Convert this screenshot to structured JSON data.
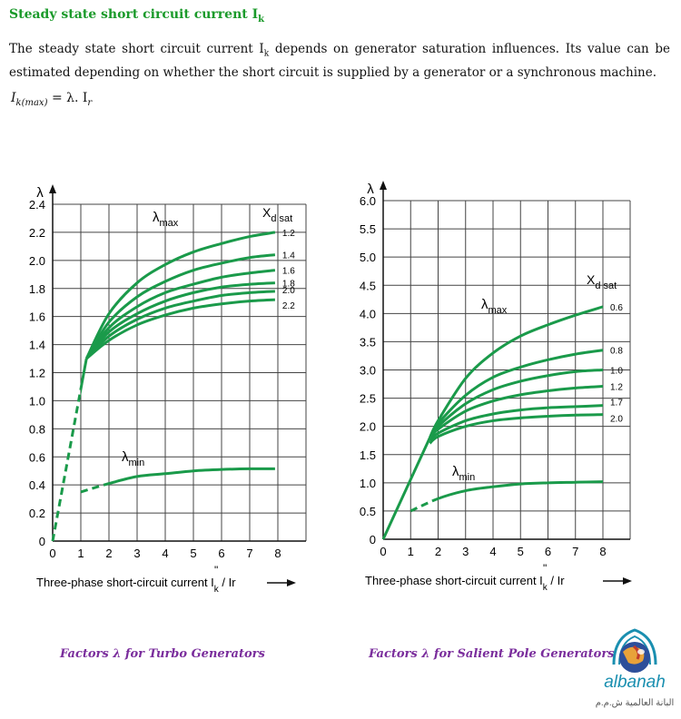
{
  "heading": {
    "text": "Steady state short circuit current I",
    "sub": "k"
  },
  "paragraph": {
    "part1": "The steady state short circuit current I",
    "sub": "k",
    "part2": " depends on generator saturation influences. Its value can be estimated depending on whether the short circuit is supplied by a generator or a synchronous machine."
  },
  "formula": {
    "lhs": "I",
    "lhs_sub": "k(max)",
    "rhs": "= λ. I",
    "rhs_sub": "r"
  },
  "captions": {
    "left": "Factors λ for Turbo Generators",
    "right": "Factors λ for Salient Pole Generators"
  },
  "logo": {
    "text": "albanah",
    "arabic": "البانة العالمية ش.م.م"
  },
  "colors": {
    "curve": "#1a9a4a",
    "title": "#1a9a2a",
    "caption": "#7a2d9c"
  },
  "chart_data": [
    {
      "type": "line",
      "title": "Factors λ for Turbo Generators",
      "xlabel": "Three-phase short-circuit current I\"k / Ir",
      "ylabel": "λ",
      "xlim": [
        0,
        8
      ],
      "ylim": [
        0,
        2.4
      ],
      "xticks": [
        "0",
        "1",
        "2",
        "3",
        "4",
        "5",
        "6",
        "7",
        "8"
      ],
      "yticks": [
        "0",
        "0.2",
        "0.4",
        "0.6",
        "0.8",
        "1.0",
        "1.2",
        "1.4",
        "1.6",
        "1.8",
        "2.0",
        "2.2",
        "2.4"
      ],
      "grid": true,
      "legend_title": "Xd sat",
      "annotations": [
        "λmax",
        "λmin"
      ],
      "series": [
        {
          "name": "1.2",
          "x": [
            1.2,
            2,
            3,
            4,
            5,
            6,
            7,
            7.9
          ],
          "values": [
            1.3,
            1.62,
            1.84,
            1.97,
            2.06,
            2.12,
            2.17,
            2.2
          ]
        },
        {
          "name": "1.4",
          "x": [
            1.2,
            2,
            3,
            4,
            5,
            6,
            7,
            7.9
          ],
          "values": [
            1.3,
            1.56,
            1.74,
            1.85,
            1.93,
            1.98,
            2.02,
            2.04
          ]
        },
        {
          "name": "1.6",
          "x": [
            1.2,
            2,
            3,
            4,
            5,
            6,
            7,
            7.9
          ],
          "values": [
            1.3,
            1.52,
            1.67,
            1.77,
            1.83,
            1.88,
            1.91,
            1.93
          ]
        },
        {
          "name": "1.8",
          "x": [
            1.2,
            2,
            3,
            4,
            5,
            6,
            7,
            7.9
          ],
          "values": [
            1.3,
            1.49,
            1.62,
            1.71,
            1.77,
            1.81,
            1.83,
            1.84
          ]
        },
        {
          "name": "2.0",
          "x": [
            1.2,
            2,
            3,
            4,
            5,
            6,
            7,
            7.9
          ],
          "values": [
            1.3,
            1.46,
            1.58,
            1.66,
            1.71,
            1.75,
            1.77,
            1.78
          ]
        },
        {
          "name": "2.2",
          "x": [
            1.2,
            2,
            3,
            4,
            5,
            6,
            7,
            7.9
          ],
          "values": [
            1.3,
            1.43,
            1.54,
            1.61,
            1.66,
            1.69,
            1.71,
            1.72
          ]
        },
        {
          "name": "λmax (linear part)",
          "x": [
            0,
            1.2
          ],
          "values": [
            0,
            1.3
          ],
          "dashed_until": 1.0
        },
        {
          "name": "λmin",
          "x": [
            1,
            2,
            3,
            4,
            5,
            6,
            7,
            7.9
          ],
          "values": [
            0.35,
            0.41,
            0.46,
            0.48,
            0.5,
            0.51,
            0.515,
            0.515
          ],
          "dashed_until": 2.0
        }
      ]
    },
    {
      "type": "line",
      "title": "Factors λ for Salient Pole Generators",
      "xlabel": "Three-phase short-circuit current I\"k / Ir",
      "ylabel": "λ",
      "xlim": [
        0,
        8
      ],
      "ylim": [
        0,
        6.0
      ],
      "xticks": [
        "0",
        "1",
        "2",
        "3",
        "4",
        "5",
        "6",
        "7",
        "8"
      ],
      "yticks": [
        "0",
        "0.5",
        "1.0",
        "1.5",
        "2.0",
        "2.5",
        "3.0",
        "3.5",
        "4.0",
        "4.5",
        "5.0",
        "5.5",
        "6.0"
      ],
      "grid": true,
      "legend_title": "Xd sat",
      "annotations": [
        "λmax",
        "λmin"
      ],
      "series": [
        {
          "name": "0.6",
          "x": [
            1.7,
            2,
            3,
            4,
            5,
            6,
            7,
            8
          ],
          "values": [
            1.8,
            2.1,
            2.85,
            3.3,
            3.6,
            3.8,
            3.97,
            4.12
          ]
        },
        {
          "name": "0.8",
          "x": [
            1.7,
            2,
            3,
            4,
            5,
            6,
            7,
            8
          ],
          "values": [
            1.8,
            2.05,
            2.55,
            2.87,
            3.05,
            3.18,
            3.28,
            3.35
          ]
        },
        {
          "name": "1.0",
          "x": [
            1.7,
            2,
            3,
            4,
            5,
            6,
            7,
            8
          ],
          "values": [
            1.8,
            2.0,
            2.4,
            2.65,
            2.8,
            2.9,
            2.97,
            3.0
          ]
        },
        {
          "name": "1.2",
          "x": [
            1.7,
            2,
            3,
            4,
            5,
            6,
            7,
            8
          ],
          "values": [
            1.8,
            1.95,
            2.27,
            2.45,
            2.56,
            2.63,
            2.68,
            2.71
          ]
        },
        {
          "name": "1.7",
          "x": [
            1.7,
            2,
            3,
            4,
            5,
            6,
            7,
            8
          ],
          "values": [
            1.75,
            1.88,
            2.1,
            2.22,
            2.29,
            2.33,
            2.35,
            2.37
          ]
        },
        {
          "name": "2.0",
          "x": [
            1.7,
            2,
            3,
            4,
            5,
            6,
            7,
            8
          ],
          "values": [
            1.7,
            1.82,
            2.0,
            2.1,
            2.15,
            2.18,
            2.2,
            2.21
          ]
        },
        {
          "name": "λmax (linear part)",
          "x": [
            0,
            1.7
          ],
          "values": [
            0,
            1.8
          ]
        },
        {
          "name": "λmin",
          "x": [
            1,
            2,
            3,
            4,
            5,
            6,
            7,
            8
          ],
          "values": [
            0.5,
            0.72,
            0.86,
            0.93,
            0.98,
            1.0,
            1.01,
            1.02
          ],
          "dashed_until": 2.0
        }
      ]
    }
  ]
}
